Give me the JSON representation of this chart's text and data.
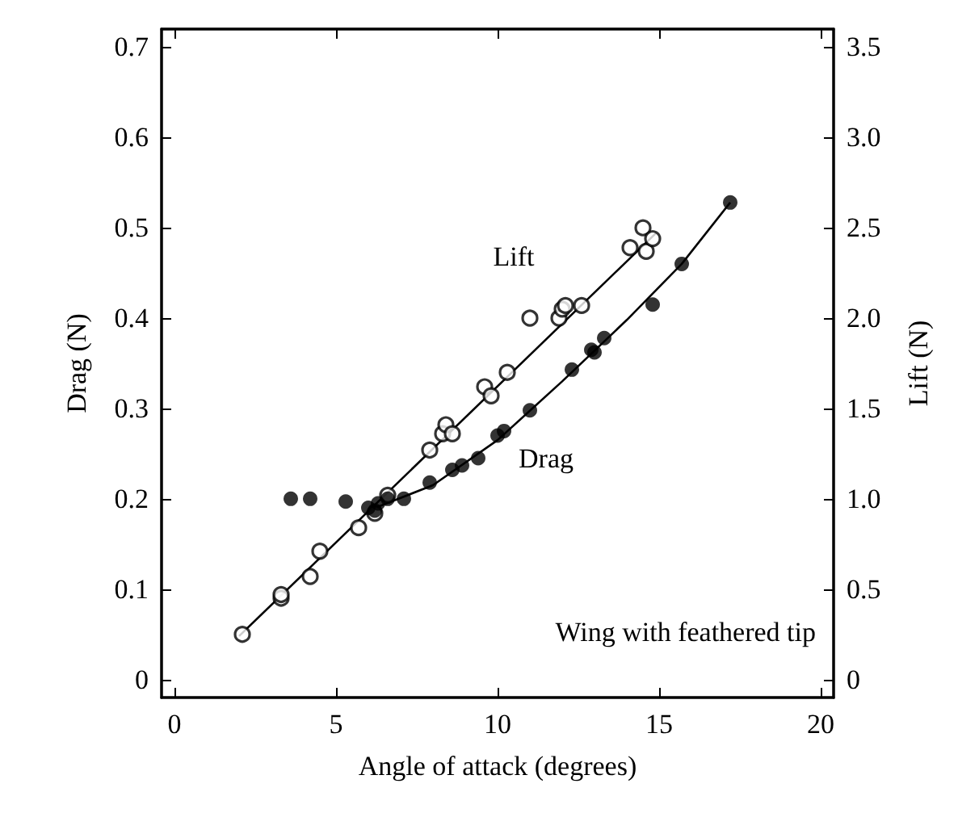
{
  "chart_data": {
    "type": "scatter",
    "xlabel": "Angle of attack (degrees)",
    "ylabel": "Drag (N)",
    "y2label": "Lift (N)",
    "xlim": [
      -0.4,
      20.4
    ],
    "xticks": [
      0,
      5,
      10,
      15,
      20
    ],
    "ylim": [
      -0.02,
      0.72
    ],
    "yticks": [
      0,
      0.1,
      0.2,
      0.3,
      0.4,
      0.5,
      0.6,
      0.7
    ],
    "y2lim": [
      -0.1,
      3.6
    ],
    "y2ticks": [
      0,
      0.5,
      {
        "value": 1,
        "label": "1.0"
      },
      1.5,
      {
        "value": 2,
        "label": "2.0"
      },
      2.5,
      {
        "value": 3,
        "label": "3.0"
      },
      3.5
    ],
    "grid": false,
    "legend": false,
    "marker": "circle",
    "annotations": [
      "Wing with feathered tip"
    ],
    "series": [
      {
        "name": "Lift",
        "axis": "y2",
        "color": "#000000",
        "x": [
          2.1,
          3.3,
          3.3,
          4.2,
          4.5,
          5.7,
          6.2,
          6.6,
          7.9,
          8.3,
          8.4,
          8.6,
          9.6,
          9.8,
          10.3,
          11.0,
          11.9,
          12.0,
          12.1,
          12.6,
          14.1,
          14.5,
          14.6,
          14.8
        ],
        "values": [
          0.25,
          0.45,
          0.47,
          0.57,
          0.71,
          0.84,
          0.92,
          1.02,
          1.27,
          1.36,
          1.41,
          1.36,
          1.62,
          1.57,
          1.7,
          2.0,
          2.0,
          2.05,
          2.07,
          2.07,
          2.39,
          2.5,
          2.37,
          2.44
        ]
      },
      {
        "type": "line",
        "axis": "y2",
        "color": "#000000",
        "marker": "none",
        "x": [
          2.0,
          14.9
        ],
        "values": [
          0.24,
          2.47
        ]
      },
      {
        "name": "Drag",
        "color": "#000000",
        "x": [
          3.6,
          4.2,
          5.3,
          6.0,
          6.2,
          6.3,
          6.6,
          7.1,
          7.9,
          8.6,
          8.9,
          9.4,
          10.0,
          10.2,
          11.0,
          12.3,
          12.9,
          13.0,
          13.3,
          14.8,
          15.7,
          17.2
        ],
        "values": [
          0.2,
          0.2,
          0.197,
          0.19,
          0.187,
          0.195,
          0.2,
          0.2,
          0.218,
          0.232,
          0.237,
          0.245,
          0.27,
          0.275,
          0.298,
          0.343,
          0.365,
          0.362,
          0.378,
          0.415,
          0.46,
          0.528
        ]
      },
      {
        "type": "line",
        "color": "#000000",
        "marker": "none",
        "x": [
          6.0,
          8,
          10,
          12,
          14,
          15.7,
          17.2
        ],
        "values": [
          0.187,
          0.215,
          0.265,
          0.33,
          0.398,
          0.46,
          0.528
        ]
      }
    ]
  }
}
